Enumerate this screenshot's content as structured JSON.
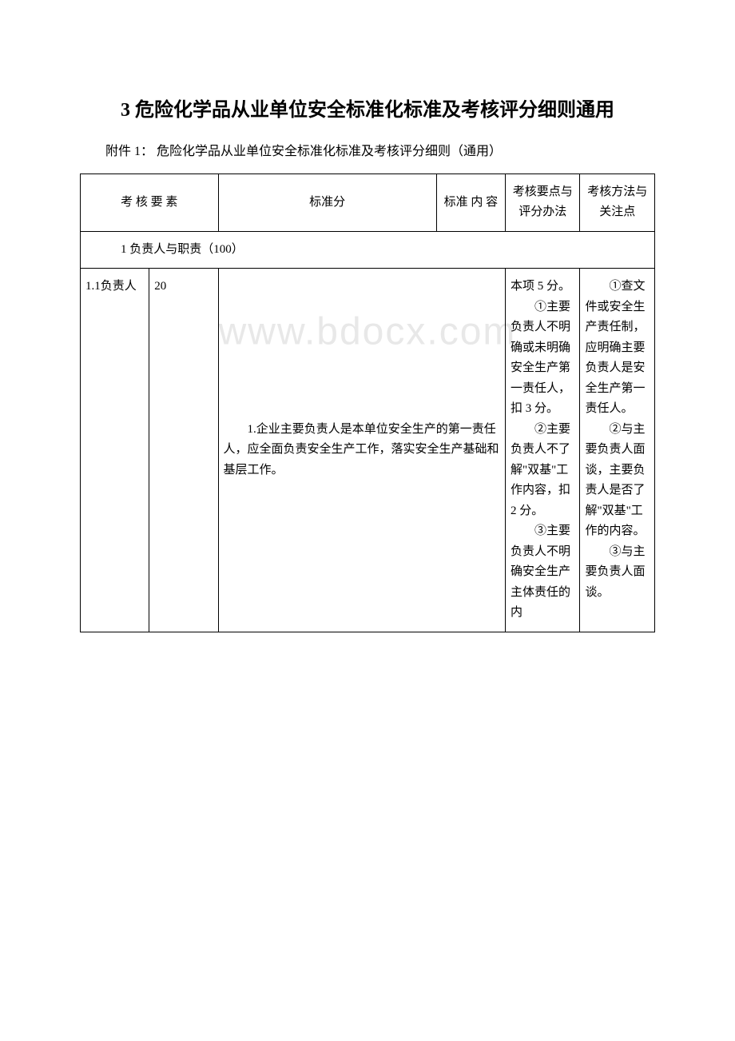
{
  "watermark": "www.bdocx.com",
  "main_title": "3 危险化学品从业单位安全标准化标准及考核评分细则通用",
  "subtitle": "附件 1：  危险化学品从业单位安全标准化标准及考核评分细则（通用）",
  "table": {
    "border_color": "#000000",
    "background_color": "#ffffff",
    "text_color": "#000000",
    "font_size": 15,
    "header": {
      "col_a": "考 核 要 素",
      "col_b": "标准分",
      "col_c": "标准 内 容",
      "col_d": "考核要点与评分办法",
      "col_e": "考核方法与关注点"
    },
    "section_row": "1 负责人与职责（100）",
    "data_row": {
      "element": "1.1负责人",
      "score": "20",
      "standard_content": "1.企业主要负责人是本单位安全生产的第一责任人，应全面负责安全生产工作，落实安全生产基础和基层工作。",
      "scoring": "本项 5 分。\n　　①主要负责人不明确或未明确安全生产第一责任人，扣 3 分。\n　　②主要负责人不了解\"双基\"工作内容，扣 2 分。\n　　③主要负责人不明确安全生产主体责任的内",
      "method": "　　①查文件或安全生产责任制，应明确主要负责人是安全生产第一责任人。\n　　②与主要负责人面谈，主要负责人是否了解\"双基\"工作的内容。\n　　③与主要负责人面谈。"
    }
  }
}
